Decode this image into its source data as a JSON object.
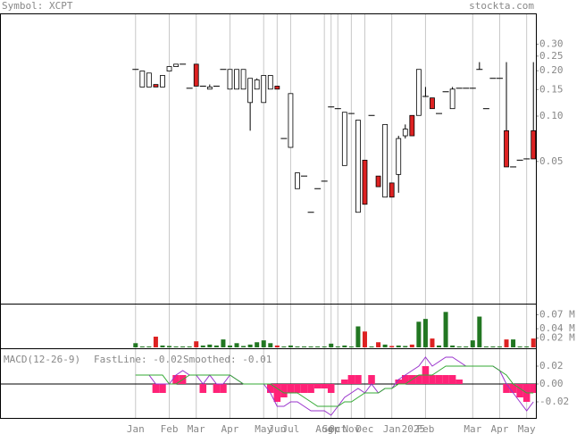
{
  "header": {
    "symbol": "Symbol: XCPT",
    "source": "stockta.com"
  },
  "chart_data": [
    {
      "type": "candlestick",
      "categories": [
        "Jan",
        null,
        null,
        null,
        null,
        "Feb",
        null,
        null,
        null,
        "Mar",
        null,
        null,
        null,
        null,
        "Apr",
        null,
        null,
        null,
        null,
        "May",
        null,
        "Jun",
        null,
        "Jul",
        null,
        null,
        null,
        null,
        "Aug",
        "Sep",
        "Oct",
        null,
        "Nov",
        null,
        "Dec",
        null,
        null,
        null,
        "Jan",
        null,
        null,
        null,
        null,
        "Feb",
        null,
        null,
        null,
        null,
        null,
        null,
        "Mar",
        null,
        null,
        null,
        "Apr",
        null,
        null,
        null,
        "May",
        null
      ],
      "annotations": [
        "2025"
      ],
      "open": [
        0.204,
        0.156,
        0.156,
        0.162,
        0.156,
        0.199,
        0.213,
        0.221,
        0.153,
        0.221,
        0.158,
        0.151,
        0.158,
        0.204,
        0.151,
        0.151,
        0.151,
        0.123,
        0.151,
        0.123,
        0.151,
        0.158,
        0.071,
        0.062,
        0.033,
        0.04,
        0.023,
        0.033,
        0.037,
        0.115,
        0.112,
        0.047,
        0.104,
        0.023,
        0.051,
        0.101,
        0.04,
        0.029,
        0.036,
        0.041,
        0.074,
        0.101,
        0.101,
        0.135,
        0.132,
        0.104,
        0.145,
        0.112,
        0.153,
        0.153,
        0.153,
        0.204,
        0.112,
        0.178,
        0.178,
        0.08,
        0.046,
        0.051,
        0.052,
        0.08
      ],
      "high": [
        0.204,
        0.199,
        0.193,
        0.162,
        0.186,
        0.213,
        0.221,
        0.221,
        0.153,
        0.221,
        0.158,
        0.162,
        0.158,
        0.204,
        0.204,
        0.204,
        0.204,
        0.178,
        0.178,
        0.186,
        0.186,
        0.158,
        0.071,
        0.141,
        0.042,
        0.04,
        0.023,
        0.033,
        0.037,
        0.115,
        0.112,
        0.106,
        0.104,
        0.094,
        0.051,
        0.101,
        0.04,
        0.088,
        0.036,
        0.074,
        0.088,
        0.101,
        0.204,
        0.156,
        0.132,
        0.104,
        0.145,
        0.156,
        0.153,
        0.153,
        0.153,
        0.228,
        0.112,
        0.178,
        0.178,
        0.228,
        0.046,
        0.051,
        0.052,
        0.228
      ],
      "low": [
        0.204,
        0.156,
        0.156,
        0.156,
        0.156,
        0.199,
        0.213,
        0.221,
        0.153,
        0.158,
        0.158,
        0.151,
        0.158,
        0.204,
        0.151,
        0.151,
        0.151,
        0.08,
        0.151,
        0.123,
        0.151,
        0.151,
        0.071,
        0.062,
        0.033,
        0.04,
        0.023,
        0.033,
        0.037,
        0.115,
        0.112,
        0.047,
        0.104,
        0.023,
        0.026,
        0.101,
        0.034,
        0.029,
        0.029,
        0.031,
        0.071,
        0.074,
        0.101,
        0.135,
        0.112,
        0.104,
        0.145,
        0.112,
        0.153,
        0.153,
        0.153,
        0.204,
        0.112,
        0.178,
        0.178,
        0.046,
        0.046,
        0.051,
        0.052,
        0.052
      ],
      "close": [
        0.204,
        0.199,
        0.193,
        0.156,
        0.186,
        0.213,
        0.221,
        0.221,
        0.153,
        0.158,
        0.158,
        0.156,
        0.158,
        0.204,
        0.204,
        0.204,
        0.204,
        0.178,
        0.174,
        0.186,
        0.186,
        0.151,
        0.071,
        0.141,
        0.042,
        0.04,
        0.023,
        0.033,
        0.037,
        0.115,
        0.112,
        0.106,
        0.104,
        0.094,
        0.026,
        0.101,
        0.034,
        0.088,
        0.029,
        0.071,
        0.082,
        0.074,
        0.204,
        0.135,
        0.112,
        0.104,
        0.145,
        0.151,
        0.153,
        0.153,
        0.153,
        0.204,
        0.112,
        0.178,
        0.178,
        0.046,
        0.046,
        0.051,
        0.052,
        0.052
      ],
      "up_color": "#ffffff",
      "down_color": "#dd2222",
      "log_scale": true,
      "ylim": [
        0.0057,
        0.48
      ],
      "yticks": [
        {
          "value": 0.3,
          "label": "0.30"
        },
        0.25,
        {
          "value": 0.2,
          "label": "0.20"
        },
        0.15,
        {
          "value": 0.1,
          "label": "0.10"
        },
        0.05
      ]
    },
    {
      "type": "volume",
      "values": [
        0.009,
        0.002,
        0.002,
        0.023,
        0.004,
        0.003,
        0.002,
        0.002,
        0.002,
        0.013,
        0.004,
        0.006,
        0.004,
        0.017,
        0.004,
        0.009,
        0.003,
        0.006,
        0.011,
        0.015,
        0.009,
        0.004,
        0.002,
        0.004,
        0.002,
        0.002,
        0.002,
        0.002,
        0.002,
        0.008,
        0.002,
        0.004,
        0.002,
        0.045,
        0.034,
        0.002,
        0.011,
        0.006,
        0.003,
        0.004,
        0.003,
        0.006,
        0.055,
        0.061,
        0.019,
        0.004,
        0.076,
        0.004,
        0.002,
        0.002,
        0.015,
        0.066,
        0.002,
        0.002,
        0.002,
        0.017,
        0.017,
        0.002,
        0.002,
        0.019
      ],
      "up_color": "#227722",
      "down_color": "#dd2222",
      "ylim": [
        0,
        0.09
      ],
      "yticks": [
        {
          "value": 0.07,
          "label": "0.07 M"
        },
        {
          "value": 0.04,
          "label": "0.04 M"
        },
        {
          "value": 0.02,
          "label": "0.02 M"
        }
      ]
    },
    {
      "type": "macd",
      "title": "MACD(12-26-9)",
      "series": [
        {
          "name": "FastLine: -0.02",
          "color": "#9933cc",
          "values": [
            0.01,
            0.01,
            0.01,
            0.0,
            0.0,
            0.0,
            0.01,
            0.015,
            0.01,
            0.01,
            0.0,
            0.01,
            0.0,
            0.0,
            0.01,
            0.005,
            0.0,
            0.0,
            0.0,
            0.0,
            -0.01,
            -0.025,
            -0.025,
            -0.02,
            -0.02,
            -0.025,
            -0.03,
            -0.03,
            -0.03,
            -0.035,
            -0.025,
            -0.015,
            -0.01,
            -0.005,
            -0.01,
            0.0,
            -0.01,
            -0.005,
            -0.005,
            0.005,
            0.01,
            0.015,
            0.02,
            0.03,
            0.02,
            0.025,
            0.03,
            0.03,
            0.025,
            0.02,
            0.02,
            0.02,
            0.02,
            0.02,
            0.015,
            0.0,
            -0.01,
            -0.02,
            -0.03,
            -0.02
          ]
        },
        {
          "name": "Smoothed: -0.01",
          "color": "#33aa33",
          "values": [
            0.01,
            0.01,
            0.01,
            0.01,
            0.01,
            0.0,
            0.0,
            0.005,
            0.01,
            0.01,
            0.01,
            0.01,
            0.01,
            0.01,
            0.01,
            0.005,
            0.0,
            0.0,
            0.0,
            0.0,
            0.0,
            -0.005,
            -0.01,
            -0.01,
            -0.01,
            -0.015,
            -0.02,
            -0.025,
            -0.025,
            -0.025,
            -0.025,
            -0.02,
            -0.02,
            -0.015,
            -0.01,
            -0.01,
            -0.01,
            -0.005,
            -0.005,
            0.0,
            0.0,
            0.005,
            0.01,
            0.01,
            0.01,
            0.015,
            0.02,
            0.02,
            0.02,
            0.02,
            0.02,
            0.02,
            0.02,
            0.02,
            0.015,
            0.01,
            0.0,
            -0.005,
            -0.01,
            -0.01
          ]
        }
      ],
      "histogram": {
        "color": "#ff2277",
        "values": [
          0.0,
          0.0,
          0.0,
          -0.01,
          -0.01,
          0.0,
          0.01,
          0.01,
          0.0,
          0.0,
          -0.01,
          0.0,
          -0.01,
          -0.01,
          0.0,
          0.0,
          0.0,
          0.0,
          0.0,
          0.0,
          -0.01,
          -0.02,
          -0.015,
          -0.01,
          -0.01,
          -0.01,
          -0.01,
          -0.005,
          -0.005,
          -0.01,
          0.0,
          0.005,
          0.01,
          0.01,
          0.0,
          0.01,
          0.0,
          0.0,
          0.0,
          0.005,
          0.01,
          0.01,
          0.01,
          0.02,
          0.01,
          0.01,
          0.01,
          0.01,
          0.005,
          0.0,
          0.0,
          0.0,
          0.0,
          0.0,
          0.0,
          -0.01,
          -0.01,
          -0.015,
          -0.02,
          -0.01
        ]
      },
      "ylim": [
        -0.038,
        0.039
      ],
      "yticks": [
        0.02,
        {
          "value": 0,
          "label": "0.00"
        },
        -0.02
      ]
    }
  ]
}
